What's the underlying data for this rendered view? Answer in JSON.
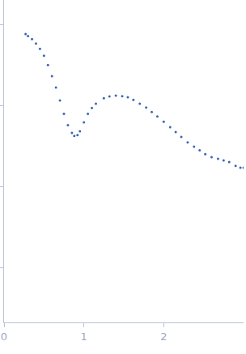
{
  "chart_data": {
    "type": "scatter",
    "marker": "circle",
    "color": "#3a66b5",
    "log": "y",
    "grid": false,
    "tick_labels": "x",
    "x": [
      0.27,
      0.3,
      0.35,
      0.4,
      0.45,
      0.5,
      0.55,
      0.6,
      0.65,
      0.7,
      0.75,
      0.8,
      0.85,
      0.88,
      0.92,
      0.95,
      1.0,
      1.05,
      1.1,
      1.15,
      1.25,
      1.32,
      1.4,
      1.48,
      1.55,
      1.62,
      1.7,
      1.78,
      1.85,
      1.92,
      2.0,
      2.08,
      2.15,
      2.22,
      2.3,
      2.38,
      2.45,
      2.52,
      2.6,
      2.68,
      2.75,
      2.82,
      2.9,
      2.96,
      3.0
    ],
    "values": [
      0.0759,
      0.072,
      0.066,
      0.058,
      0.05,
      0.041,
      0.0316,
      0.023,
      0.0166,
      0.0115,
      0.0079,
      0.0057,
      0.0046,
      0.0042,
      0.0043,
      0.0048,
      0.0062,
      0.0079,
      0.0093,
      0.0105,
      0.0123,
      0.0129,
      0.0132,
      0.013,
      0.0126,
      0.0117,
      0.0105,
      0.0094,
      0.0083,
      0.0073,
      0.0063,
      0.0054,
      0.0047,
      0.0041,
      0.0035,
      0.0031,
      0.0028,
      0.0025,
      0.0023,
      0.0022,
      0.0021,
      0.002,
      0.0018,
      0.0017,
      0.0017
    ],
    "xlim": [
      0,
      3
    ],
    "xticks": [
      0,
      1,
      2
    ],
    "ylim": [
      2.1e-05,
      0.2
    ],
    "yticks": [
      0.0001,
      0.001,
      0.01,
      0.1
    ]
  }
}
